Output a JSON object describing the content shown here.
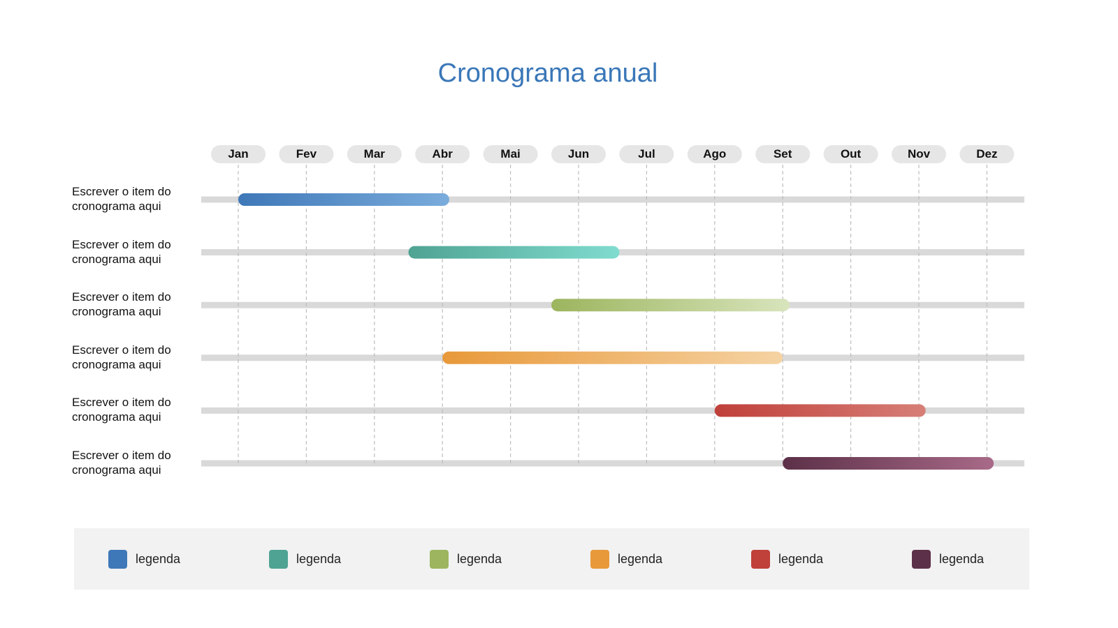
{
  "chart_data": {
    "type": "gantt",
    "title": "Cronograma anual",
    "months": [
      "Jan",
      "Fev",
      "Mar",
      "Abr",
      "Mai",
      "Jun",
      "Jul",
      "Ago",
      "Set",
      "Out",
      "Nov",
      "Dez"
    ],
    "tasks": [
      {
        "label": "Escrever o item do cronograma aqui",
        "start_month": 1.0,
        "end_month": 4.1,
        "color_from": "#3f78b8",
        "color_to": "#7aacdc"
      },
      {
        "label": "Escrever o item do cronograma aqui",
        "start_month": 3.5,
        "end_month": 6.6,
        "color_from": "#4fa393",
        "color_to": "#80dccf"
      },
      {
        "label": "Escrever o item do cronograma aqui",
        "start_month": 5.6,
        "end_month": 9.1,
        "color_from": "#9cb55e",
        "color_to": "#d8e4bc"
      },
      {
        "label": "Escrever o item do cronograma aqui",
        "start_month": 4.0,
        "end_month": 9.0,
        "color_from": "#e8993a",
        "color_to": "#f5d3a3"
      },
      {
        "label": "Escrever o item do cronograma aqui",
        "start_month": 8.0,
        "end_month": 11.1,
        "color_from": "#c0403a",
        "color_to": "#d67f77"
      },
      {
        "label": "Escrever o item do cronograma aqui",
        "start_month": 9.0,
        "end_month": 12.1,
        "color_from": "#5c3048",
        "color_to": "#a86a88"
      }
    ],
    "legend": [
      {
        "label": "legenda",
        "color": "#3f78b8"
      },
      {
        "label": "legenda",
        "color": "#4fa393"
      },
      {
        "label": "legenda",
        "color": "#9cb55e"
      },
      {
        "label": "legenda",
        "color": "#e8993a"
      },
      {
        "label": "legenda",
        "color": "#c0403a"
      },
      {
        "label": "legenda",
        "color": "#5c3048"
      }
    ],
    "legend_position": "bottom",
    "grid": "vertical dashed"
  }
}
